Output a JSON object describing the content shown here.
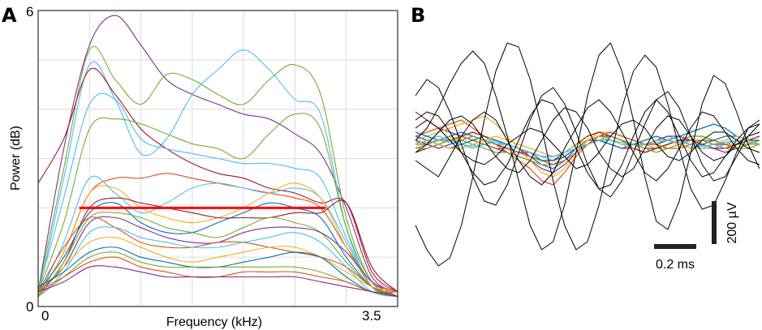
{
  "panels": {
    "a": {
      "letter": "A"
    },
    "b": {
      "letter": "B"
    }
  },
  "chart_data": [
    {
      "type": "line",
      "panel": "A",
      "xlabel": "Frequency (kHz)",
      "ylabel": "Power (dB)",
      "xlim": [
        0,
        3.5
      ],
      "ylim": [
        0,
        6
      ],
      "x_ticks": [
        "0",
        "3.5"
      ],
      "y_ticks": [
        "0",
        "6"
      ],
      "grid": true,
      "x": [
        0,
        0.25,
        0.5,
        0.75,
        1.0,
        1.25,
        1.5,
        1.75,
        2.0,
        2.25,
        2.5,
        2.75,
        3.0,
        3.25,
        3.5
      ],
      "series": [
        {
          "values": [
            0.3,
            3.2,
            5.3,
            5.9,
            5.3,
            4.6,
            4.3,
            4.1,
            3.9,
            3.8,
            3.5,
            3.1,
            2.0,
            0.6,
            0.3
          ],
          "color": "#7e2f8e"
        },
        {
          "values": [
            0.3,
            2.8,
            5.2,
            4.6,
            4.1,
            4.7,
            4.6,
            4.3,
            4.1,
            4.6,
            4.9,
            4.3,
            1.8,
            0.5,
            0.2
          ],
          "color": "#77ac30"
        },
        {
          "values": [
            0.2,
            2.6,
            4.9,
            4.2,
            3.1,
            3.4,
            4.3,
            4.8,
            5.2,
            4.8,
            4.2,
            3.9,
            1.6,
            0.4,
            0.2
          ],
          "color": "#4dbeee"
        },
        {
          "values": [
            2.5,
            3.4,
            4.8,
            4.3,
            3.6,
            3.2,
            2.9,
            2.7,
            2.6,
            2.4,
            2.3,
            2.1,
            2.1,
            0.7,
            0.3
          ],
          "color": "#a2142f"
        },
        {
          "values": [
            0.3,
            2.2,
            4.1,
            4.2,
            3.4,
            3.2,
            3.1,
            3.0,
            2.9,
            2.9,
            2.8,
            2.6,
            1.4,
            0.4,
            0.2
          ],
          "color": "#4dbeee"
        },
        {
          "values": [
            0.3,
            1.7,
            3.6,
            3.8,
            3.7,
            3.5,
            3.3,
            3.2,
            3.0,
            3.5,
            3.9,
            3.6,
            1.6,
            0.5,
            0.2
          ],
          "color": "#77ac30"
        },
        {
          "values": [
            0.2,
            1.1,
            2.3,
            2.6,
            2.6,
            2.7,
            2.6,
            2.5,
            2.4,
            2.3,
            2.2,
            2.0,
            1.2,
            0.5,
            0.3
          ],
          "color": "#d95319"
        },
        {
          "values": [
            0.2,
            1.3,
            2.6,
            2.3,
            1.9,
            2.1,
            2.4,
            2.5,
            2.4,
            2.3,
            2.4,
            2.2,
            1.3,
            0.4,
            0.2
          ],
          "color": "#4dbeee"
        },
        {
          "values": [
            0.2,
            1.1,
            2.3,
            2.4,
            2.0,
            1.8,
            1.7,
            1.8,
            2.0,
            2.3,
            2.5,
            2.2,
            1.2,
            0.4,
            0.2
          ],
          "color": "#edb120"
        },
        {
          "values": [
            0.2,
            0.9,
            2.0,
            2.2,
            2.1,
            2.0,
            1.9,
            1.8,
            1.8,
            1.8,
            1.9,
            1.9,
            2.1,
            0.8,
            0.3
          ],
          "color": "#a2142f"
        },
        {
          "values": [
            0.3,
            1.0,
            1.9,
            2.1,
            1.7,
            1.5,
            1.5,
            1.7,
            1.9,
            2.1,
            2.0,
            1.8,
            1.0,
            0.4,
            0.2
          ],
          "color": "#0072bd"
        },
        {
          "values": [
            0.2,
            0.9,
            1.8,
            1.9,
            1.8,
            1.6,
            1.5,
            1.4,
            1.6,
            1.8,
            1.7,
            1.5,
            0.9,
            0.4,
            0.2
          ],
          "color": "#77ac30"
        },
        {
          "values": [
            0.3,
            0.8,
            1.7,
            1.8,
            1.6,
            1.4,
            1.3,
            1.3,
            1.5,
            1.6,
            1.6,
            1.5,
            1.1,
            0.5,
            0.2
          ],
          "color": "#7e2f8e"
        },
        {
          "values": [
            0.3,
            1.2,
            1.8,
            1.6,
            1.3,
            1.2,
            1.2,
            1.3,
            1.3,
            1.2,
            1.1,
            1.0,
            0.8,
            0.4,
            0.2
          ],
          "color": "#d95319"
        },
        {
          "values": [
            0.2,
            0.7,
            1.5,
            1.6,
            1.4,
            1.3,
            1.2,
            1.2,
            1.3,
            1.4,
            1.5,
            1.3,
            0.8,
            0.3,
            0.2
          ],
          "color": "#4dbeee"
        },
        {
          "values": [
            0.3,
            0.8,
            1.3,
            1.4,
            1.2,
            1.0,
            0.9,
            1.0,
            1.1,
            1.2,
            1.2,
            1.0,
            0.7,
            0.4,
            0.3
          ],
          "color": "#edb120"
        },
        {
          "values": [
            0.4,
            0.7,
            1.1,
            1.2,
            1.0,
            0.9,
            0.8,
            0.8,
            0.9,
            1.0,
            1.1,
            1.0,
            0.6,
            0.3,
            0.3
          ],
          "color": "#0072bd"
        },
        {
          "values": [
            0.2,
            0.6,
            1.0,
            1.1,
            0.9,
            0.8,
            0.8,
            0.8,
            0.8,
            0.8,
            0.8,
            0.7,
            0.5,
            0.3,
            0.2
          ],
          "color": "#77ac30"
        },
        {
          "values": [
            0.3,
            0.6,
            0.9,
            1.0,
            0.8,
            0.7,
            0.6,
            0.6,
            0.7,
            0.7,
            0.7,
            0.6,
            0.5,
            0.3,
            0.3
          ],
          "color": "#d95319"
        },
        {
          "values": [
            0.3,
            0.5,
            0.8,
            0.8,
            0.7,
            0.6,
            0.6,
            0.6,
            0.6,
            0.6,
            0.6,
            0.5,
            0.4,
            0.3,
            0.2
          ],
          "color": "#7e2f8e"
        }
      ],
      "threshold": {
        "value": 2.0,
        "x_range": [
          0.4,
          2.8
        ],
        "color": "#ff0000"
      }
    },
    {
      "type": "line",
      "panel": "B",
      "scale_bar_x": "0.2 ms",
      "scale_bar_y": "200 µV",
      "t": [
        0,
        0.05,
        0.1,
        0.15,
        0.2,
        0.25,
        0.3,
        0.35,
        0.4,
        0.45,
        0.5,
        0.55,
        0.6,
        0.65,
        0.7,
        0.75,
        0.8,
        0.85,
        0.9,
        0.95,
        1.0,
        1.05,
        1.1,
        1.15,
        1.2,
        1.25,
        1.3,
        1.35,
        1.4,
        1.45,
        1.5
      ],
      "series": [
        {
          "values": [
            -40,
            -60,
            -80,
            -30,
            20,
            60,
            80,
            60,
            10,
            -40,
            -80,
            -100,
            -70,
            -10,
            40,
            90,
            110,
            80,
            30,
            -20,
            -70,
            -90,
            -60,
            -10,
            40,
            80,
            70,
            30,
            -10,
            -40,
            -50
          ],
          "color": "#000000"
        },
        {
          "values": [
            10,
            40,
            90,
            150,
            200,
            230,
            200,
            120,
            20,
            -90,
            -200,
            -260,
            -240,
            -150,
            -20,
            120,
            220,
            250,
            180,
            60,
            -80,
            -190,
            -210,
            -140,
            -20,
            100,
            170,
            150,
            80,
            0,
            -60
          ],
          "color": "#000000"
        },
        {
          "values": [
            -200,
            -260,
            -300,
            -280,
            -200,
            -80,
            60,
            180,
            250,
            240,
            160,
            40,
            -90,
            -200,
            -260,
            -240,
            -150,
            -30,
            90,
            180,
            220,
            190,
            100,
            -10,
            -110,
            -160,
            -150,
            -90,
            -20,
            40,
            60
          ],
          "color": "#000000"
        },
        {
          "values": [
            60,
            80,
            70,
            30,
            -20,
            -70,
            -100,
            -90,
            -50,
            10,
            70,
            110,
            100,
            50,
            -10,
            -70,
            -110,
            -100,
            -50,
            20,
            80,
            110,
            80,
            20,
            -40,
            -80,
            -70,
            -30,
            10,
            40,
            50
          ],
          "color": "#000000"
        },
        {
          "values": [
            -20,
            0,
            30,
            60,
            70,
            50,
            10,
            -30,
            -60,
            -70,
            -40,
            10,
            60,
            90,
            80,
            40,
            -20,
            -60,
            -80,
            -60,
            -10,
            40,
            70,
            60,
            20,
            -20,
            -40,
            -30,
            0,
            20,
            30
          ],
          "color": "#000000"
        },
        {
          "values": [
            120,
            160,
            140,
            80,
            0,
            -80,
            -140,
            -150,
            -100,
            -20,
            60,
            120,
            140,
            100,
            30,
            -50,
            -110,
            -130,
            -90,
            -20,
            50,
            110,
            130,
            90,
            20,
            -50,
            -90,
            -80,
            -30,
            20,
            50
          ],
          "color": "#000000"
        },
        {
          "values": [
            40,
            60,
            40,
            10,
            -20,
            -40,
            -50,
            -30,
            0,
            20,
            40,
            30,
            0,
            -30,
            -60,
            -50,
            -20,
            20,
            50,
            60,
            40,
            0,
            -30,
            -40,
            -20,
            10,
            30,
            30,
            10,
            -10,
            -20
          ],
          "color": "#000000"
        },
        {
          "values": [
            80,
            60,
            40,
            30,
            20,
            10,
            0,
            -10,
            -20,
            -30,
            -40,
            -60,
            -70,
            -50,
            -20,
            10,
            20,
            20,
            10,
            0,
            -10,
            -10,
            0,
            10,
            10,
            10,
            0,
            0,
            0,
            10,
            10
          ],
          "color": "#7e2f8e"
        },
        {
          "values": [
            20,
            30,
            40,
            50,
            60,
            40,
            20,
            0,
            -20,
            -40,
            -60,
            -90,
            -100,
            -70,
            -30,
            0,
            20,
            30,
            20,
            10,
            0,
            -10,
            0,
            10,
            20,
            20,
            10,
            0,
            0,
            0,
            0
          ],
          "color": "#d95319"
        },
        {
          "values": [
            10,
            20,
            30,
            40,
            50,
            60,
            70,
            50,
            20,
            -10,
            -40,
            -70,
            -80,
            -60,
            -20,
            10,
            30,
            30,
            20,
            10,
            0,
            -10,
            -10,
            0,
            10,
            10,
            10,
            0,
            0,
            0,
            0
          ],
          "color": "#edb120"
        },
        {
          "values": [
            30,
            20,
            10,
            20,
            30,
            20,
            10,
            0,
            -10,
            -20,
            -30,
            -50,
            -60,
            -40,
            -10,
            10,
            20,
            20,
            10,
            0,
            0,
            0,
            10,
            20,
            30,
            40,
            50,
            40,
            20,
            10,
            10
          ],
          "color": "#0072bd"
        },
        {
          "values": [
            -10,
            0,
            10,
            20,
            10,
            0,
            -10,
            -20,
            -20,
            -30,
            -40,
            -50,
            -50,
            -30,
            -10,
            10,
            20,
            10,
            0,
            -10,
            -20,
            -10,
            0,
            10,
            20,
            20,
            10,
            0,
            -10,
            -10,
            0
          ],
          "color": "#77ac30"
        },
        {
          "values": [
            0,
            10,
            20,
            10,
            0,
            -10,
            0,
            10,
            0,
            -10,
            -20,
            -30,
            -40,
            -30,
            -10,
            0,
            10,
            10,
            0,
            0,
            0,
            10,
            20,
            10,
            0,
            -10,
            -10,
            0,
            10,
            10,
            0
          ],
          "color": "#4dbeee"
        },
        {
          "values": [
            -20,
            -10,
            0,
            10,
            20,
            30,
            20,
            10,
            0,
            -10,
            -30,
            -40,
            -40,
            -20,
            0,
            20,
            30,
            20,
            10,
            -10,
            -20,
            -10,
            0,
            10,
            10,
            0,
            -10,
            -10,
            0,
            10,
            20
          ],
          "color": "#a2142f"
        },
        {
          "values": [
            10,
            0,
            -10,
            0,
            10,
            20,
            10,
            0,
            -10,
            -20,
            -20,
            -30,
            -30,
            -20,
            0,
            10,
            10,
            0,
            -10,
            -10,
            0,
            10,
            20,
            20,
            10,
            0,
            -10,
            -20,
            -10,
            0,
            10
          ],
          "color": "#7e2f8e"
        },
        {
          "values": [
            0,
            0,
            10,
            10,
            20,
            10,
            0,
            -10,
            -10,
            -20,
            -30,
            -40,
            -50,
            -40,
            -20,
            0,
            20,
            30,
            20,
            10,
            0,
            0,
            -10,
            -10,
            0,
            10,
            10,
            0,
            -10,
            0,
            10
          ],
          "color": "#d95319"
        },
        {
          "values": [
            20,
            10,
            0,
            -10,
            0,
            10,
            20,
            10,
            0,
            -10,
            -20,
            -40,
            -40,
            -30,
            -10,
            0,
            10,
            0,
            -10,
            0,
            10,
            20,
            10,
            0,
            -10,
            0,
            10,
            20,
            20,
            10,
            0
          ],
          "color": "#0072bd"
        },
        {
          "values": [
            -10,
            -10,
            0,
            10,
            10,
            20,
            10,
            0,
            0,
            -10,
            -20,
            -30,
            -30,
            -20,
            -10,
            0,
            10,
            20,
            10,
            0,
            -10,
            -20,
            -10,
            0,
            10,
            10,
            0,
            -10,
            -10,
            0,
            10
          ],
          "color": "#77ac30"
        },
        {
          "values": [
            0,
            10,
            0,
            -10,
            -10,
            0,
            10,
            20,
            10,
            0,
            -10,
            -20,
            -30,
            -20,
            0,
            10,
            20,
            10,
            0,
            -10,
            0,
            10,
            10,
            0,
            -10,
            -10,
            0,
            10,
            20,
            10,
            0
          ],
          "color": "#edb120"
        },
        {
          "values": [
            5,
            5,
            10,
            5,
            0,
            -5,
            0,
            5,
            0,
            -10,
            -20,
            -30,
            -30,
            -20,
            -10,
            0,
            10,
            10,
            5,
            0,
            0,
            5,
            10,
            5,
            0,
            -5,
            0,
            5,
            10,
            5,
            0
          ],
          "color": "#4dbeee"
        }
      ]
    }
  ]
}
